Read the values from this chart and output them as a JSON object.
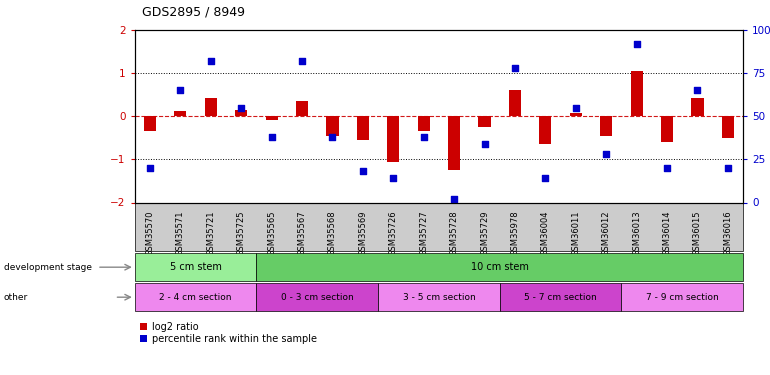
{
  "title": "GDS2895 / 8949",
  "samples": [
    "GSM35570",
    "GSM35571",
    "GSM35721",
    "GSM35725",
    "GSM35565",
    "GSM35567",
    "GSM35568",
    "GSM35569",
    "GSM35726",
    "GSM35727",
    "GSM35728",
    "GSM35729",
    "GSM35978",
    "GSM36004",
    "GSM36011",
    "GSM36012",
    "GSM36013",
    "GSM36014",
    "GSM36015",
    "GSM36016"
  ],
  "log2_ratio": [
    -0.35,
    0.12,
    0.42,
    0.15,
    -0.08,
    0.35,
    -0.45,
    -0.55,
    -1.05,
    -0.35,
    -1.25,
    -0.25,
    0.62,
    -0.65,
    0.08,
    -0.45,
    1.05,
    -0.6,
    0.42,
    -0.5
  ],
  "percentile_raw": [
    20,
    65,
    82,
    55,
    38,
    82,
    38,
    18,
    14,
    38,
    2,
    34,
    78,
    14,
    55,
    28,
    92,
    20,
    65,
    20
  ],
  "bar_color": "#cc0000",
  "dot_color": "#0000cc",
  "ylim": [
    -2.0,
    2.0
  ],
  "yticks": [
    -2,
    -1,
    0,
    1,
    2
  ],
  "y2ticks": [
    0,
    25,
    50,
    75,
    100
  ],
  "dev_stage_groups": [
    {
      "label": "5 cm stem",
      "start": 0,
      "end": 3,
      "color": "#99ee99"
    },
    {
      "label": "10 cm stem",
      "start": 4,
      "end": 19,
      "color": "#66cc66"
    }
  ],
  "other_groups": [
    {
      "label": "2 - 4 cm section",
      "start": 0,
      "end": 3,
      "color": "#ee88ee"
    },
    {
      "label": "0 - 3 cm section",
      "start": 4,
      "end": 7,
      "color": "#cc44cc"
    },
    {
      "label": "3 - 5 cm section",
      "start": 8,
      "end": 11,
      "color": "#ee88ee"
    },
    {
      "label": "5 - 7 cm section",
      "start": 12,
      "end": 15,
      "color": "#cc44cc"
    },
    {
      "label": "7 - 9 cm section",
      "start": 16,
      "end": 19,
      "color": "#ee88ee"
    }
  ],
  "background_color": "#ffffff",
  "tick_bg_color": "#cccccc",
  "legend_red_label": "log2 ratio",
  "legend_blue_label": "percentile rank within the sample"
}
